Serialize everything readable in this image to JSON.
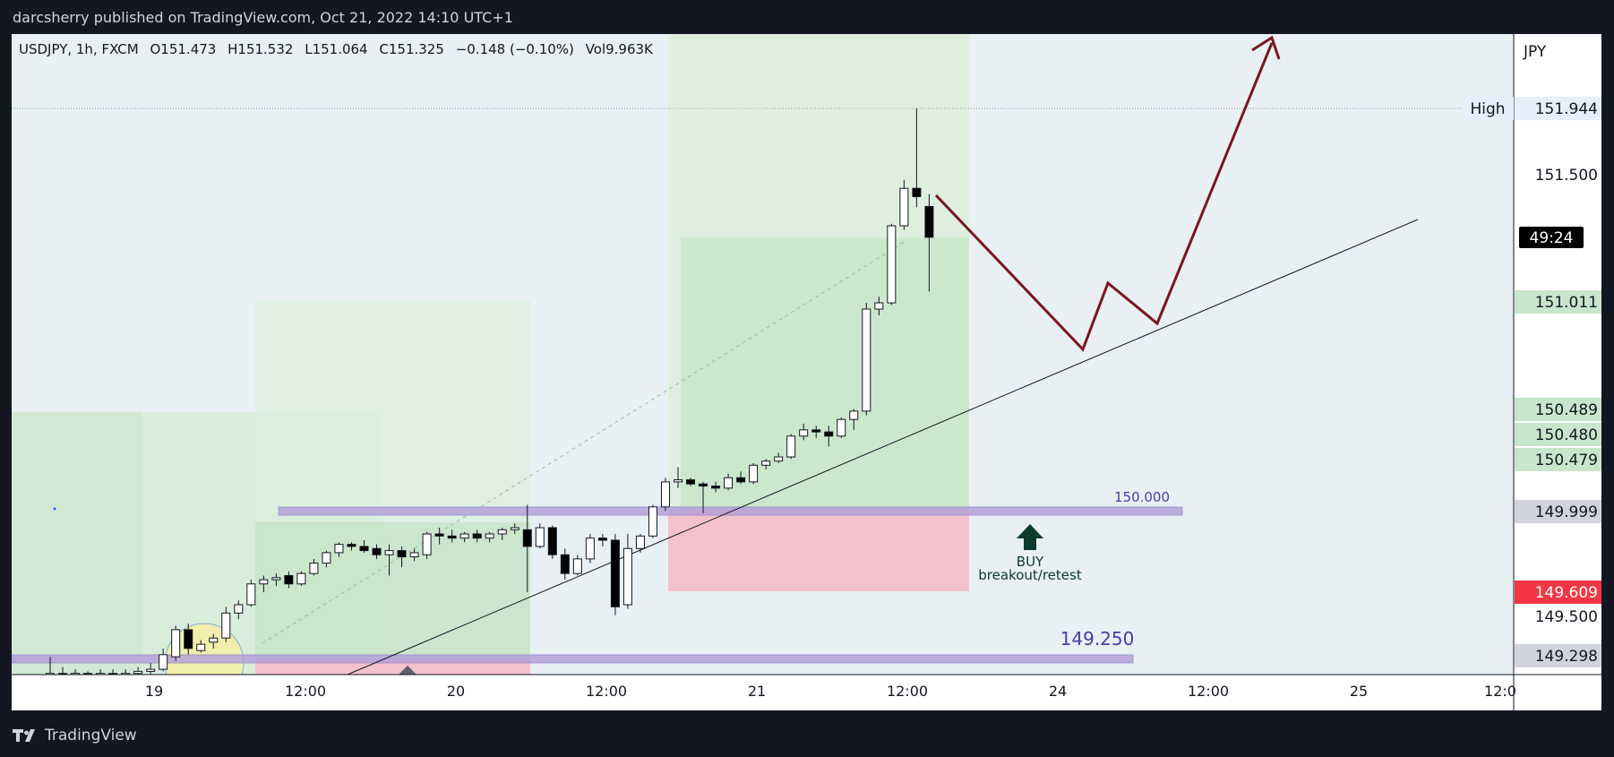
{
  "header": {
    "publisher": "darcsherry published on TradingView.com, Oct 21, 2022 14:10 UTC+1"
  },
  "footer": {
    "brand": "TradingView"
  },
  "symbol_line": {
    "symbol": "USDJPY, 1h, FXCM",
    "open": "O151.473",
    "high": "H151.532",
    "low": "L151.064",
    "close": "C151.325",
    "change": "−0.148 (−0.10%)",
    "volume": "Vol9.963K"
  },
  "colors": {
    "bull_body": "#ffffff",
    "bear_body": "#000000",
    "projection": "#7b1620",
    "zone_green": "#c8e6c9",
    "zone_red": "#f4c2cc",
    "level_purple": "#b39ddb",
    "current_price_tag": "#f23645"
  },
  "chart_data": {
    "type": "candlestick",
    "currency": "JPY",
    "ylim": [
      149.2,
      152.05
    ],
    "x_tick_labels": [
      "19",
      "12:00",
      "20",
      "12:00",
      "21",
      "12:00",
      "24",
      "12:00",
      "25",
      "12:0"
    ],
    "price_tags": [
      {
        "label": "High",
        "value": "151.944",
        "style": "high"
      },
      {
        "value": "49:24",
        "style": "timer"
      },
      {
        "value": "151.011",
        "style": "green"
      },
      {
        "value": "150.489",
        "style": "green"
      },
      {
        "value": "150.480",
        "style": "green"
      },
      {
        "value": "150.479",
        "style": "green"
      },
      {
        "value": "149.999",
        "style": "gray"
      },
      {
        "value": "149.609",
        "style": "red"
      },
      {
        "value": "149.298",
        "style": "gray"
      }
    ],
    "axis_prices": [
      "151.500",
      "149.500"
    ],
    "level_labels": [
      "150.000",
      "149.250"
    ],
    "annotation": {
      "line1": "BUY",
      "line2": "breakout/retest"
    },
    "candles": [
      {
        "o": 149.22,
        "h": 149.31,
        "l": 149.2,
        "c": 149.23
      },
      {
        "o": 149.23,
        "h": 149.26,
        "l": 149.21,
        "c": 149.22
      },
      {
        "o": 149.22,
        "h": 149.25,
        "l": 149.2,
        "c": 149.23
      },
      {
        "o": 149.23,
        "h": 149.24,
        "l": 149.2,
        "c": 149.21
      },
      {
        "o": 149.21,
        "h": 149.25,
        "l": 149.2,
        "c": 149.23
      },
      {
        "o": 149.23,
        "h": 149.25,
        "l": 149.2,
        "c": 149.22
      },
      {
        "o": 149.22,
        "h": 149.25,
        "l": 149.2,
        "c": 149.23
      },
      {
        "o": 149.23,
        "h": 149.26,
        "l": 149.21,
        "c": 149.24
      },
      {
        "o": 149.24,
        "h": 149.28,
        "l": 149.21,
        "c": 149.25
      },
      {
        "o": 149.25,
        "h": 149.35,
        "l": 149.24,
        "c": 149.32
      },
      {
        "o": 149.31,
        "h": 149.46,
        "l": 149.29,
        "c": 149.44
      },
      {
        "o": 149.44,
        "h": 149.47,
        "l": 149.32,
        "c": 149.35
      },
      {
        "o": 149.34,
        "h": 149.39,
        "l": 149.33,
        "c": 149.37
      },
      {
        "o": 149.38,
        "h": 149.42,
        "l": 149.35,
        "c": 149.4
      },
      {
        "o": 149.4,
        "h": 149.55,
        "l": 149.38,
        "c": 149.52
      },
      {
        "o": 149.52,
        "h": 149.58,
        "l": 149.49,
        "c": 149.56
      },
      {
        "o": 149.56,
        "h": 149.68,
        "l": 149.55,
        "c": 149.66
      },
      {
        "o": 149.66,
        "h": 149.7,
        "l": 149.62,
        "c": 149.68
      },
      {
        "o": 149.68,
        "h": 149.71,
        "l": 149.65,
        "c": 149.69
      },
      {
        "o": 149.7,
        "h": 149.72,
        "l": 149.64,
        "c": 149.66
      },
      {
        "o": 149.66,
        "h": 149.72,
        "l": 149.65,
        "c": 149.71
      },
      {
        "o": 149.71,
        "h": 149.78,
        "l": 149.7,
        "c": 149.76
      },
      {
        "o": 149.76,
        "h": 149.82,
        "l": 149.74,
        "c": 149.81
      },
      {
        "o": 149.81,
        "h": 149.86,
        "l": 149.79,
        "c": 149.85
      },
      {
        "o": 149.85,
        "h": 149.86,
        "l": 149.82,
        "c": 149.84
      },
      {
        "o": 149.84,
        "h": 149.87,
        "l": 149.81,
        "c": 149.82
      },
      {
        "o": 149.83,
        "h": 149.85,
        "l": 149.78,
        "c": 149.8
      },
      {
        "o": 149.8,
        "h": 149.85,
        "l": 149.7,
        "c": 149.82
      },
      {
        "o": 149.82,
        "h": 149.84,
        "l": 149.74,
        "c": 149.79
      },
      {
        "o": 149.79,
        "h": 149.83,
        "l": 149.77,
        "c": 149.81
      },
      {
        "o": 149.8,
        "h": 149.91,
        "l": 149.78,
        "c": 149.9
      },
      {
        "o": 149.9,
        "h": 149.93,
        "l": 149.85,
        "c": 149.89
      },
      {
        "o": 149.89,
        "h": 149.92,
        "l": 149.86,
        "c": 149.88
      },
      {
        "o": 149.88,
        "h": 149.91,
        "l": 149.86,
        "c": 149.9
      },
      {
        "o": 149.9,
        "h": 149.92,
        "l": 149.86,
        "c": 149.88
      },
      {
        "o": 149.88,
        "h": 149.91,
        "l": 149.86,
        "c": 149.9
      },
      {
        "o": 149.9,
        "h": 149.93,
        "l": 149.87,
        "c": 149.92
      },
      {
        "o": 149.92,
        "h": 149.95,
        "l": 149.9,
        "c": 149.93
      },
      {
        "o": 149.92,
        "h": 150.04,
        "l": 149.62,
        "c": 149.84
      },
      {
        "o": 149.84,
        "h": 149.95,
        "l": 149.83,
        "c": 149.93
      },
      {
        "o": 149.93,
        "h": 149.94,
        "l": 149.78,
        "c": 149.8
      },
      {
        "o": 149.8,
        "h": 149.83,
        "l": 149.68,
        "c": 149.71
      },
      {
        "o": 149.71,
        "h": 149.8,
        "l": 149.7,
        "c": 149.78
      },
      {
        "o": 149.78,
        "h": 149.9,
        "l": 149.76,
        "c": 149.88
      },
      {
        "o": 149.88,
        "h": 149.9,
        "l": 149.84,
        "c": 149.87
      },
      {
        "o": 149.87,
        "h": 149.9,
        "l": 149.51,
        "c": 149.55
      },
      {
        "o": 149.56,
        "h": 149.9,
        "l": 149.54,
        "c": 149.83
      },
      {
        "o": 149.83,
        "h": 149.9,
        "l": 149.81,
        "c": 149.89
      },
      {
        "o": 149.89,
        "h": 150.04,
        "l": 149.88,
        "c": 150.03
      },
      {
        "o": 150.03,
        "h": 150.17,
        "l": 150.01,
        "c": 150.15
      },
      {
        "o": 150.15,
        "h": 150.22,
        "l": 150.12,
        "c": 150.16
      },
      {
        "o": 150.16,
        "h": 150.17,
        "l": 150.13,
        "c": 150.14
      },
      {
        "o": 150.14,
        "h": 150.15,
        "l": 150.0,
        "c": 150.13
      },
      {
        "o": 150.13,
        "h": 150.15,
        "l": 150.1,
        "c": 150.12
      },
      {
        "o": 150.12,
        "h": 150.19,
        "l": 150.11,
        "c": 150.17
      },
      {
        "o": 150.17,
        "h": 150.2,
        "l": 150.14,
        "c": 150.15
      },
      {
        "o": 150.15,
        "h": 150.24,
        "l": 150.14,
        "c": 150.23
      },
      {
        "o": 150.23,
        "h": 150.26,
        "l": 150.21,
        "c": 150.25
      },
      {
        "o": 150.25,
        "h": 150.29,
        "l": 150.24,
        "c": 150.27
      },
      {
        "o": 150.27,
        "h": 150.38,
        "l": 150.26,
        "c": 150.37
      },
      {
        "o": 150.37,
        "h": 150.43,
        "l": 150.35,
        "c": 150.4
      },
      {
        "o": 150.4,
        "h": 150.42,
        "l": 150.36,
        "c": 150.39
      },
      {
        "o": 150.39,
        "h": 150.42,
        "l": 150.32,
        "c": 150.37
      },
      {
        "o": 150.37,
        "h": 150.46,
        "l": 150.36,
        "c": 150.45
      },
      {
        "o": 150.45,
        "h": 150.5,
        "l": 150.4,
        "c": 150.49
      },
      {
        "o": 150.49,
        "h": 151.01,
        "l": 150.47,
        "c": 150.98
      },
      {
        "o": 150.98,
        "h": 151.04,
        "l": 150.95,
        "c": 151.01
      },
      {
        "o": 151.01,
        "h": 151.39,
        "l": 151.0,
        "c": 151.38
      },
      {
        "o": 151.38,
        "h": 151.6,
        "l": 151.36,
        "c": 151.56
      },
      {
        "o": 151.56,
        "h": 151.944,
        "l": 151.47,
        "c": 151.52
      },
      {
        "o": 151.473,
        "h": 151.532,
        "l": 151.064,
        "c": 151.325
      }
    ]
  }
}
